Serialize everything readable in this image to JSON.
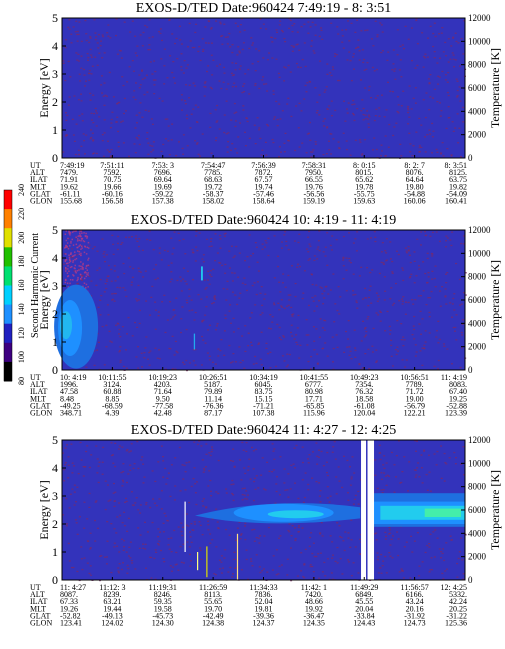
{
  "chart_data": [
    {
      "type": "heatmap",
      "title": "EXOS-D/TED   Date:960424  7:49:19 - 8: 3:51",
      "ylabel": "Energy [eV]",
      "y2label": "Temperature [K]",
      "ylim": [
        0,
        5
      ],
      "yticks": [
        "0",
        "1",
        "2",
        "3",
        "4",
        "5"
      ],
      "y2lim": [
        0,
        12000
      ],
      "y2ticks": [
        "0",
        "2000",
        "4000",
        "6000",
        "8000",
        "10000",
        "12000"
      ],
      "ephemeris": {
        "labels": [
          "UT",
          "ALT",
          "ILAT",
          "MLT",
          "GLAT",
          "GLON"
        ],
        "columns": [
          [
            "7:49:19",
            "7479.",
            "71.91",
            "19.62",
            "-61.11",
            "155.68"
          ],
          [
            "7:51:11",
            "7592.",
            "70.75",
            "19.66",
            "-60.16",
            "156.58"
          ],
          [
            "7:53: 3",
            "7696.",
            "69.64",
            "19.69",
            "-59.22",
            "157.38"
          ],
          [
            "7:54:47",
            "7785.",
            "68.63",
            "19.72",
            "-58.37",
            "158.02"
          ],
          [
            "7:56:39",
            "7872.",
            "67.57",
            "19.74",
            "-57.46",
            "158.64"
          ],
          [
            "7:58:31",
            "7950.",
            "66.55",
            "19.76",
            "-56.56",
            "159.19"
          ],
          [
            "8: 0:15",
            "8015.",
            "65.62",
            "19.78",
            "-55.75",
            "159.63"
          ],
          [
            "8: 2: 7",
            "8076.",
            "64.64",
            "19.80",
            "-54.88",
            "160.06"
          ],
          [
            "8: 3:51",
            "8125.",
            "63.75",
            "19.82",
            "-54.09",
            "160.41"
          ]
        ]
      },
      "features": []
    },
    {
      "type": "heatmap",
      "title": "EXOS-D/TED   Date:960424  10: 4:19 - 11: 4:19",
      "ylabel": "Energy [eV]",
      "y2label": "Temperature [K]",
      "ylim": [
        0,
        5
      ],
      "yticks": [
        "0",
        "1",
        "2",
        "3",
        "4",
        "5"
      ],
      "y2lim": [
        0,
        12000
      ],
      "y2ticks": [
        "0",
        "2000",
        "4000",
        "6000",
        "8000",
        "10000",
        "12000"
      ],
      "ephemeris": {
        "labels": [
          "UT",
          "ALT",
          "ILAT",
          "MLT",
          "GLAT",
          "GLON"
        ],
        "columns": [
          [
            "10: 4:19",
            "1996.",
            "47.58",
            "8.48",
            "-49.25",
            "348.71"
          ],
          [
            "10:11:55",
            "3124.",
            "60.88",
            "8.85",
            "-68.59",
            "4.39"
          ],
          [
            "10:19:23",
            "4203.",
            "71.64",
            "9.50",
            "-77.58",
            "42.48"
          ],
          [
            "10:26:51",
            "5187.",
            "79.89",
            "11.14",
            "-76.36",
            "87.17"
          ],
          [
            "10:34:19",
            "6045.",
            "83.75",
            "15.15",
            "-71.21",
            "107.38"
          ],
          [
            "10:41:55",
            "6777.",
            "80.98",
            "17.71",
            "-65.85",
            "115.96"
          ],
          [
            "10:49:23",
            "7354.",
            "76.32",
            "18.58",
            "-61.08",
            "120.04"
          ],
          [
            "10:56:51",
            "7789.",
            "71.72",
            "19.00",
            "-56.79",
            "122.21"
          ],
          [
            "11: 4:19",
            "8083.",
            "67.40",
            "19.25",
            "-52.88",
            "123.39"
          ]
        ]
      },
      "features": []
    },
    {
      "type": "heatmap",
      "title": "EXOS-D/TED   Date:960424  11: 4:27 - 12: 4:25",
      "ylabel": "Energy [eV]",
      "y2label": "Temperature [K]",
      "ylim": [
        0,
        5
      ],
      "yticks": [
        "0",
        "1",
        "2",
        "3",
        "4",
        "5"
      ],
      "y2lim": [
        0,
        12000
      ],
      "y2ticks": [
        "0",
        "2000",
        "4000",
        "6000",
        "8000",
        "10000",
        "12000"
      ],
      "ephemeris": {
        "labels": [
          "UT",
          "ALT",
          "ILAT",
          "MLT",
          "GLAT",
          "GLON"
        ],
        "columns": [
          [
            "11: 4:27",
            "8087.",
            "67.33",
            "19.26",
            "-52.82",
            "123.41"
          ],
          [
            "11:12: 3",
            "8239.",
            "63.21",
            "19.44",
            "-49.13",
            "124.02"
          ],
          [
            "11:19:31",
            "8246.",
            "59.35",
            "19.58",
            "-45.73",
            "124.30"
          ],
          [
            "11:26:59",
            "8113.",
            "55.65",
            "19.70",
            "-42.49",
            "124.38"
          ],
          [
            "11:34:33",
            "7836.",
            "52.04",
            "19.81",
            "-39.36",
            "124.37"
          ],
          [
            "11:42: 1",
            "7420.",
            "48.66",
            "19.92",
            "-36.47",
            "124.35"
          ],
          [
            "11:49:29",
            "6849.",
            "45.55",
            "20.04",
            "-33.84",
            "124.43"
          ],
          [
            "11:56:57",
            "6166.",
            "43.24",
            "20.16",
            "-31.92",
            "124.73"
          ],
          [
            "12: 4:25",
            "5332.",
            "42.24",
            "20.25",
            "-31.22",
            "125.36"
          ]
        ]
      },
      "features": []
    }
  ],
  "colorbar": {
    "label": "Second Harmonic Current",
    "min": 80,
    "max": 240,
    "ticks": [
      "80",
      "100",
      "120",
      "140",
      "160",
      "180",
      "200",
      "220",
      "240"
    ],
    "colors": [
      "#000000",
      "#3d0080",
      "#2020c0",
      "#1e90ff",
      "#00d0ff",
      "#00e070",
      "#20c000",
      "#e0e000",
      "#ff8000",
      "#ff0000"
    ]
  },
  "colors": {
    "background_field": "#3333bb",
    "speckle": "#7a2a6a",
    "band_cyan": "#22ccee",
    "band_green": "#44eeaa",
    "gap": "#ffffff"
  }
}
